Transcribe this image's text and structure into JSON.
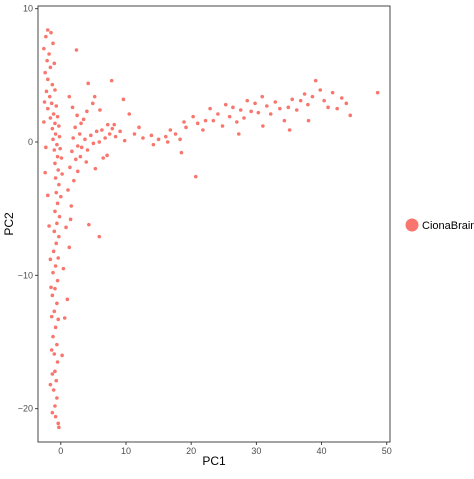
{
  "chart_data": {
    "type": "scatter",
    "title": "",
    "xlabel": "PC1",
    "ylabel": "PC2",
    "xlim": [
      -3.5,
      50.5
    ],
    "ylim": [
      -22.5,
      10.2
    ],
    "x_ticks": [
      0,
      10,
      20,
      30,
      40,
      50
    ],
    "x_tick_labels": [
      "0",
      "10",
      "20",
      "30",
      "40",
      "50"
    ],
    "y_ticks": [
      -20,
      -10,
      0,
      10
    ],
    "y_tick_labels": [
      "−20",
      "−10",
      "0",
      "10"
    ],
    "grid": false,
    "legend_position": "right",
    "series": [
      {
        "name": "CionaBrain",
        "color": "#F8766D",
        "points": [
          [
            -2.0,
            8.4
          ],
          [
            -2.3,
            7.9
          ],
          [
            -1.5,
            8.2
          ],
          [
            -2.6,
            7.0
          ],
          [
            -1.8,
            6.6
          ],
          [
            -1.2,
            7.4
          ],
          [
            -2.1,
            6.1
          ],
          [
            -1.6,
            5.6
          ],
          [
            -2.4,
            5.2
          ],
          [
            -1.0,
            5.9
          ],
          [
            -2.0,
            4.7
          ],
          [
            -1.3,
            4.3
          ],
          [
            -2.2,
            3.8
          ],
          [
            -1.7,
            3.4
          ],
          [
            -0.9,
            3.9
          ],
          [
            -1.4,
            2.9
          ],
          [
            -2.0,
            2.5
          ],
          [
            -0.7,
            2.7
          ],
          [
            -1.1,
            2.1
          ],
          [
            -1.6,
            1.8
          ],
          [
            -0.5,
            1.9
          ],
          [
            -0.9,
            1.4
          ],
          [
            -1.3,
            1.0
          ],
          [
            -0.3,
            1.2
          ],
          [
            -0.8,
            0.6
          ],
          [
            -1.2,
            0.2
          ],
          [
            -0.2,
            0.4
          ],
          [
            -0.6,
            -0.2
          ],
          [
            -1.0,
            -0.6
          ],
          [
            -0.1,
            -0.5
          ],
          [
            -0.5,
            -1.1
          ],
          [
            -0.9,
            -1.6
          ],
          [
            0.1,
            -1.2
          ],
          [
            -0.4,
            -2.1
          ],
          [
            -0.8,
            -2.7
          ],
          [
            0.2,
            -2.4
          ],
          [
            -0.3,
            -3.2
          ],
          [
            -0.7,
            -3.8
          ],
          [
            0.0,
            -4.1
          ],
          [
            -0.5,
            -4.6
          ],
          [
            -0.9,
            -5.2
          ],
          [
            -0.2,
            -5.6
          ],
          [
            -0.6,
            -6.1
          ],
          [
            -1.0,
            -6.7
          ],
          [
            -0.3,
            -7.1
          ],
          [
            -0.7,
            -7.6
          ],
          [
            -1.1,
            -8.2
          ],
          [
            -0.4,
            -8.7
          ],
          [
            -0.8,
            -9.3
          ],
          [
            -1.2,
            -9.8
          ],
          [
            -0.5,
            -10.4
          ],
          [
            -0.9,
            -11.0
          ],
          [
            -1.3,
            -11.5
          ],
          [
            -0.6,
            -12.1
          ],
          [
            -1.0,
            -12.7
          ],
          [
            -0.4,
            -13.3
          ],
          [
            -0.8,
            -13.9
          ],
          [
            -1.2,
            -14.6
          ],
          [
            -0.6,
            -15.2
          ],
          [
            -1.0,
            -15.9
          ],
          [
            -0.5,
            -16.5
          ],
          [
            -0.9,
            -17.2
          ],
          [
            -0.7,
            -17.9
          ],
          [
            -1.1,
            -18.6
          ],
          [
            -0.6,
            -19.2
          ],
          [
            -0.9,
            -19.8
          ],
          [
            -0.8,
            -20.6
          ],
          [
            -0.4,
            -21.1
          ],
          [
            -0.3,
            -21.4
          ],
          [
            -1.3,
            -20.3
          ],
          [
            -1.6,
            -18.2
          ],
          [
            0.2,
            -16.0
          ],
          [
            0.6,
            -13.2
          ],
          [
            1.0,
            -11.8
          ],
          [
            0.4,
            -9.5
          ],
          [
            1.3,
            -7.9
          ],
          [
            0.8,
            -6.4
          ],
          [
            1.6,
            -4.8
          ],
          [
            1.1,
            -3.6
          ],
          [
            2.0,
            -2.9
          ],
          [
            1.4,
            -1.9
          ],
          [
            2.3,
            -1.3
          ],
          [
            1.7,
            -0.7
          ],
          [
            2.6,
            -0.3
          ],
          [
            1.9,
            0.3
          ],
          [
            2.9,
            0.6
          ],
          [
            2.2,
            1.1
          ],
          [
            3.1,
            1.4
          ],
          [
            2.5,
            2.0
          ],
          [
            1.8,
            2.6
          ],
          [
            1.3,
            3.4
          ],
          [
            2.4,
            6.9
          ],
          [
            4.2,
            4.4
          ],
          [
            1.5,
            -5.8
          ],
          [
            4.3,
            -6.2
          ],
          [
            5.9,
            -7.1
          ],
          [
            3.2,
            -0.4
          ],
          [
            3.7,
            0.2
          ],
          [
            4.1,
            -0.6
          ],
          [
            4.6,
            0.5
          ],
          [
            5.0,
            -0.1
          ],
          [
            5.5,
            0.8
          ],
          [
            5.9,
            0.0
          ],
          [
            6.3,
            0.9
          ],
          [
            6.8,
            0.3
          ],
          [
            7.2,
            1.3
          ],
          [
            7.5,
            0.6
          ],
          [
            7.9,
            1.0
          ],
          [
            8.4,
            0.4
          ],
          [
            4.9,
            2.9
          ],
          [
            6.0,
            2.4
          ],
          [
            3.9,
            -1.5
          ],
          [
            5.3,
            -2.0
          ],
          [
            6.5,
            -1.2
          ],
          [
            7.1,
            -1.0
          ],
          [
            8.2,
            1.3
          ],
          [
            9.1,
            0.8
          ],
          [
            9.8,
            0.1
          ],
          [
            11.3,
            0.6
          ],
          [
            12.6,
            0.3
          ],
          [
            13.9,
            0.5
          ],
          [
            15.0,
            0.2
          ],
          [
            16.1,
            0.4
          ],
          [
            16.8,
            0.9
          ],
          [
            17.6,
            0.6
          ],
          [
            18.3,
            0.2
          ],
          [
            18.5,
            -0.8
          ],
          [
            19.2,
            1.1
          ],
          [
            20.3,
            1.9
          ],
          [
            20.7,
            -2.6
          ],
          [
            21.0,
            1.4
          ],
          [
            21.8,
            0.9
          ],
          [
            22.2,
            1.6
          ],
          [
            22.9,
            2.5
          ],
          [
            23.4,
            1.6
          ],
          [
            24.1,
            2.1
          ],
          [
            24.8,
            1.2
          ],
          [
            25.3,
            2.8
          ],
          [
            25.9,
            1.9
          ],
          [
            26.4,
            2.6
          ],
          [
            27.0,
            1.5
          ],
          [
            27.6,
            2.4
          ],
          [
            28.1,
            1.8
          ],
          [
            28.6,
            3.1
          ],
          [
            29.2,
            2.3
          ],
          [
            29.8,
            2.9
          ],
          [
            30.3,
            2.2
          ],
          [
            30.9,
            3.4
          ],
          [
            31.6,
            2.7
          ],
          [
            32.2,
            2.1
          ],
          [
            32.9,
            3.0
          ],
          [
            33.6,
            2.5
          ],
          [
            34.3,
            1.6
          ],
          [
            34.9,
            2.6
          ],
          [
            35.5,
            3.2
          ],
          [
            36.2,
            2.4
          ],
          [
            36.8,
            3.1
          ],
          [
            37.4,
            3.6
          ],
          [
            37.9,
            2.8
          ],
          [
            38.6,
            3.4
          ],
          [
            39.1,
            4.6
          ],
          [
            39.8,
            3.9
          ],
          [
            40.4,
            3.1
          ],
          [
            41.0,
            2.6
          ],
          [
            41.7,
            3.7
          ],
          [
            42.4,
            2.5
          ],
          [
            43.1,
            3.3
          ],
          [
            43.8,
            2.9
          ],
          [
            44.4,
            2.0
          ],
          [
            48.6,
            3.7
          ],
          [
            27.3,
            0.6
          ],
          [
            31.0,
            1.2
          ],
          [
            35.1,
            0.9
          ],
          [
            38.0,
            1.6
          ],
          [
            9.6,
            3.2
          ],
          [
            10.5,
            2.1
          ],
          [
            12.0,
            1.1
          ],
          [
            14.2,
            -0.2
          ],
          [
            16.4,
            0.0
          ],
          [
            18.9,
            1.5
          ],
          [
            7.8,
            4.6
          ],
          [
            5.2,
            3.4
          ],
          [
            4.0,
            2.3
          ],
          [
            3.5,
            1.7
          ],
          [
            3.0,
            -1.1
          ],
          [
            2.6,
            -2.2
          ],
          [
            -2.5,
            3.0
          ],
          [
            -2.6,
            1.5
          ],
          [
            -2.3,
            -0.4
          ],
          [
            -2.4,
            -2.3
          ],
          [
            -2.0,
            -4.0
          ],
          [
            -1.8,
            -6.3
          ],
          [
            -1.6,
            -8.8
          ],
          [
            -1.5,
            -10.9
          ],
          [
            -1.4,
            -13.1
          ],
          [
            -1.4,
            -15.6
          ],
          [
            -1.3,
            -17.4
          ]
        ]
      }
    ]
  }
}
